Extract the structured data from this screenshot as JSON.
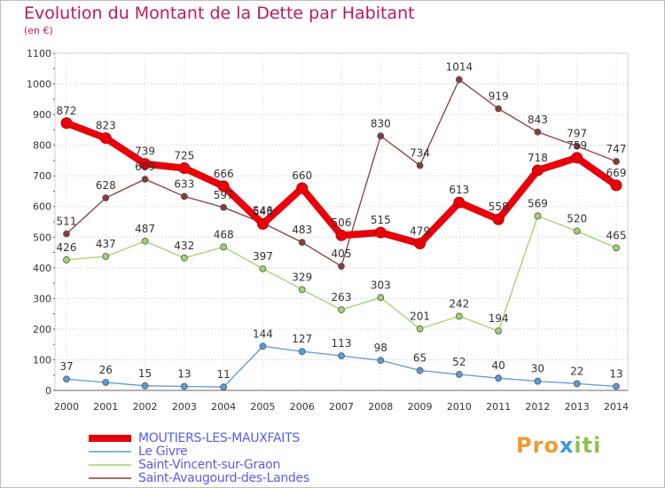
{
  "title": "Evolution du Montant de la Dette par Habitant",
  "unit": "(en €)",
  "logo": "Proxiti",
  "chart_data": {
    "type": "line",
    "x": [
      "2000",
      "2001",
      "2002",
      "2003",
      "2004",
      "2005",
      "2006",
      "2007",
      "2008",
      "2009",
      "2010",
      "2011",
      "2012",
      "2013",
      "2014"
    ],
    "ylim": [
      0,
      1100
    ],
    "yticks": [
      0,
      100,
      200,
      300,
      400,
      500,
      600,
      700,
      800,
      900,
      1000,
      1100
    ],
    "grid": true,
    "legend_position": "bottom",
    "series": [
      {
        "name": "MOUTIERS-LES-MAUXFAITS",
        "color": "#e8000b",
        "values": [
          872,
          823,
          739,
          725,
          666,
          543,
          660,
          506,
          515,
          479,
          613,
          558,
          718,
          759,
          669
        ],
        "labels": [
          "872",
          "823",
          "739",
          "725",
          "666",
          "543",
          "660",
          "506",
          "515",
          "479",
          "613",
          "558",
          "718",
          "759",
          "669"
        ]
      },
      {
        "name": "Le Givre",
        "color": "#5b9bd5",
        "values": [
          37,
          26,
          15,
          13,
          11,
          144,
          127,
          113,
          98,
          65,
          52,
          40,
          30,
          22,
          13
        ],
        "labels": [
          "37",
          "26",
          "15",
          "13",
          "11",
          "144",
          "127",
          "113",
          "98",
          "65",
          "52",
          "40",
          "30",
          "22",
          "13"
        ]
      },
      {
        "name": "Saint-Vincent-sur-Graon",
        "color": "#9ed46a",
        "values": [
          426,
          437,
          487,
          432,
          468,
          397,
          329,
          263,
          303,
          201,
          242,
          194,
          569,
          520,
          465
        ],
        "labels": [
          "426",
          "437",
          "487",
          "432",
          "468",
          "397",
          "329",
          "263",
          "303",
          "201",
          "242",
          "194",
          "569",
          "520",
          "465"
        ]
      },
      {
        "name": "Saint-Avaugourd-des-Landes",
        "color": "#8b3a3a",
        "values": [
          511,
          628,
          689,
          633,
          597,
          546,
          483,
          405,
          830,
          734,
          1014,
          919,
          843,
          797,
          747
        ],
        "labels": [
          "511",
          "628",
          "689",
          "633",
          "597",
          "546",
          "483",
          "405",
          "830",
          "734",
          "1014",
          "919",
          "843",
          "797",
          "747"
        ]
      }
    ]
  }
}
